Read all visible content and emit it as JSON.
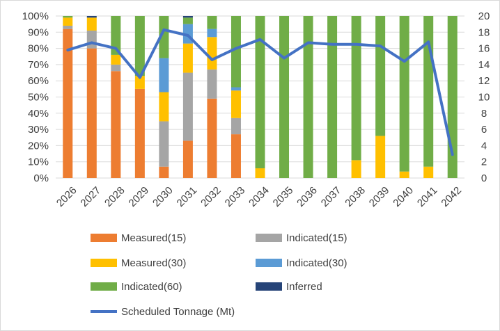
{
  "chart_data": {
    "type": "bar",
    "stacked": true,
    "percent_stacked": true,
    "categories": [
      "2026",
      "2027",
      "2028",
      "2029",
      "2030",
      "2031",
      "2032",
      "2033",
      "2034",
      "2035",
      "2036",
      "2037",
      "2038",
      "2039",
      "2040",
      "2041",
      "2042"
    ],
    "series": [
      {
        "name": "Measured(15)",
        "color": "#ED7D31",
        "values": [
          92,
          80,
          66,
          55,
          7,
          23,
          49,
          27,
          0,
          0,
          0,
          0,
          0,
          0,
          0,
          0,
          0
        ]
      },
      {
        "name": "Indicated(15)",
        "color": "#A5A5A5",
        "values": [
          2,
          11,
          4,
          0,
          28,
          42,
          18,
          10,
          0,
          0,
          0,
          0,
          0,
          0,
          0,
          0,
          0
        ]
      },
      {
        "name": "Measured(30)",
        "color": "#FFC000",
        "values": [
          5,
          8,
          6,
          8,
          18,
          18,
          20,
          17,
          6,
          0,
          0,
          0,
          11,
          26,
          4,
          7,
          0
        ]
      },
      {
        "name": "Indicated(30)",
        "color": "#5B9BD5",
        "values": [
          0,
          0,
          0,
          0,
          21,
          12,
          5,
          2,
          0,
          0,
          0,
          0,
          0,
          0,
          0,
          0,
          0
        ]
      },
      {
        "name": "Indicated(60)",
        "color": "#70AD47",
        "values": [
          1,
          0,
          24,
          37,
          26,
          4,
          8,
          44,
          94,
          100,
          100,
          100,
          89,
          74,
          96,
          93,
          100
        ]
      },
      {
        "name": "Inferred",
        "color": "#264478",
        "values": [
          0,
          1,
          0,
          0,
          0,
          1,
          0,
          0,
          0,
          0,
          0,
          0,
          0,
          0,
          0,
          0,
          0
        ]
      }
    ],
    "line_series": {
      "name": "Scheduled Tonnage (Mt)",
      "color": "#4472C4",
      "axis": "secondary",
      "values": [
        15.8,
        16.7,
        16.0,
        12.4,
        18.3,
        17.6,
        14.6,
        16.0,
        17.1,
        14.8,
        16.7,
        16.5,
        16.5,
        16.3,
        14.4,
        16.8,
        2.9
      ]
    },
    "ylim": [
      0,
      100
    ],
    "y_ticks": [
      "0%",
      "10%",
      "20%",
      "30%",
      "40%",
      "50%",
      "60%",
      "70%",
      "80%",
      "90%",
      "100%"
    ],
    "y2lim": [
      0,
      20
    ],
    "y2_ticks": [
      "0",
      "2",
      "4",
      "6",
      "8",
      "10",
      "12",
      "14",
      "16",
      "18",
      "20"
    ],
    "xlabel": "",
    "ylabel": "",
    "y2label": "",
    "grid": true,
    "legend_position": "bottom"
  }
}
